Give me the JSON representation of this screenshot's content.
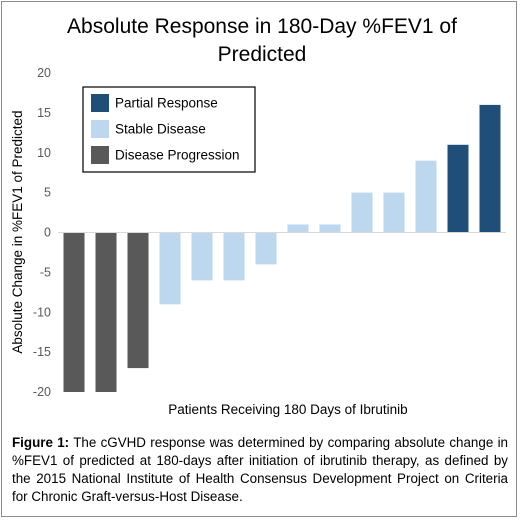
{
  "chart_data": {
    "type": "bar",
    "title": "Absolute Response in 180-Day %FEV1 of Predicted",
    "title_lines": [
      "Absolute Response in 180-Day %FEV1 of",
      "Predicted"
    ],
    "xlabel": "Patients Receiving 180 Days of Ibrutinib",
    "ylabel": "Absolute Change in %FEV1 of Predicted",
    "ylim": [
      -20,
      20
    ],
    "yticks": [
      20,
      15,
      10,
      5,
      0,
      -5,
      -10,
      -15,
      -20
    ],
    "grid": false,
    "legend_position": "top-left",
    "series": [
      {
        "name": "Partial Response",
        "color": "#1f4e79"
      },
      {
        "name": "Stable Disease",
        "color": "#bdd7ee"
      },
      {
        "name": "Disease Progression",
        "color": "#595959"
      }
    ],
    "bars": [
      {
        "value": -20,
        "series": "Disease Progression"
      },
      {
        "value": -20,
        "series": "Disease Progression"
      },
      {
        "value": -17,
        "series": "Disease Progression"
      },
      {
        "value": -9,
        "series": "Stable Disease"
      },
      {
        "value": -6,
        "series": "Stable Disease"
      },
      {
        "value": -6,
        "series": "Stable Disease"
      },
      {
        "value": -4,
        "series": "Stable Disease"
      },
      {
        "value": 1,
        "series": "Stable Disease"
      },
      {
        "value": 1,
        "series": "Stable Disease"
      },
      {
        "value": 5,
        "series": "Stable Disease"
      },
      {
        "value": 5,
        "series": "Stable Disease"
      },
      {
        "value": 9,
        "series": "Stable Disease"
      },
      {
        "value": 11,
        "series": "Partial Response"
      },
      {
        "value": 16,
        "series": "Partial Response"
      }
    ]
  },
  "caption": {
    "label": "Figure 1:",
    "text": " The cGVHD response was determined by comparing absolute change in %FEV1 of predicted at 180-days after initiation of ibrutinib therapy, as defined by the 2015 National Institute of Health Consensus Development Project on Criteria for Chronic Graft-versus-Host Disease."
  }
}
